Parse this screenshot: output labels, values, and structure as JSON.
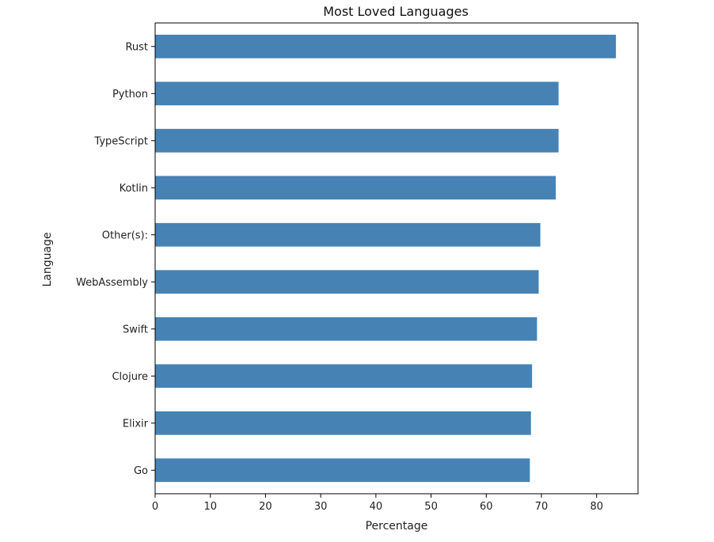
{
  "chart_data": {
    "type": "bar",
    "orientation": "horizontal",
    "title": "Most Loved Languages",
    "xlabel": "Percentage",
    "ylabel": "Language",
    "categories": [
      "Rust",
      "Python",
      "TypeScript",
      "Kotlin",
      "Other(s):",
      "WebAssembly",
      "Swift",
      "Clojure",
      "Elixir",
      "Go"
    ],
    "values": [
      83.5,
      73.1,
      73.1,
      72.6,
      69.8,
      69.5,
      69.2,
      68.3,
      68.1,
      67.9
    ],
    "xlim": [
      0,
      87.5
    ],
    "xticks": [
      0,
      10,
      20,
      30,
      40,
      50,
      60,
      70,
      80
    ],
    "grid": false,
    "bar_color": "#4682b4"
  }
}
